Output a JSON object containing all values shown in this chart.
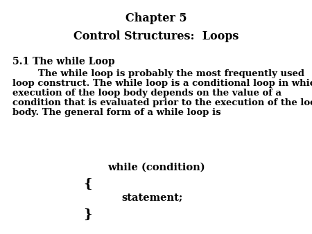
{
  "background_color": "#ffffff",
  "title1": "Chapter 5",
  "title2": "Control Structures:  Loops",
  "section_header": "5.1 The while Loop",
  "para_line1": "        The while loop is probably the most frequently used",
  "para_line2": "loop construct. The while loop is a conditional loop in which",
  "para_line3": "execution of the loop body depends on the value of a",
  "para_line4": "condition that is evaluated prior to the execution of the loop",
  "para_line5": "body. The general form of a while loop is",
  "code_line1": "while (condition)",
  "code_line2": "{",
  "code_line3": "statement;",
  "code_line4": "}",
  "title_fontsize": 11.5,
  "section_fontsize": 10,
  "body_fontsize": 9.5,
  "code_fontsize": 10.5,
  "brace_fontsize": 14,
  "text_color": "#000000",
  "fig_width": 4.5,
  "fig_height": 3.38,
  "dpi": 100
}
